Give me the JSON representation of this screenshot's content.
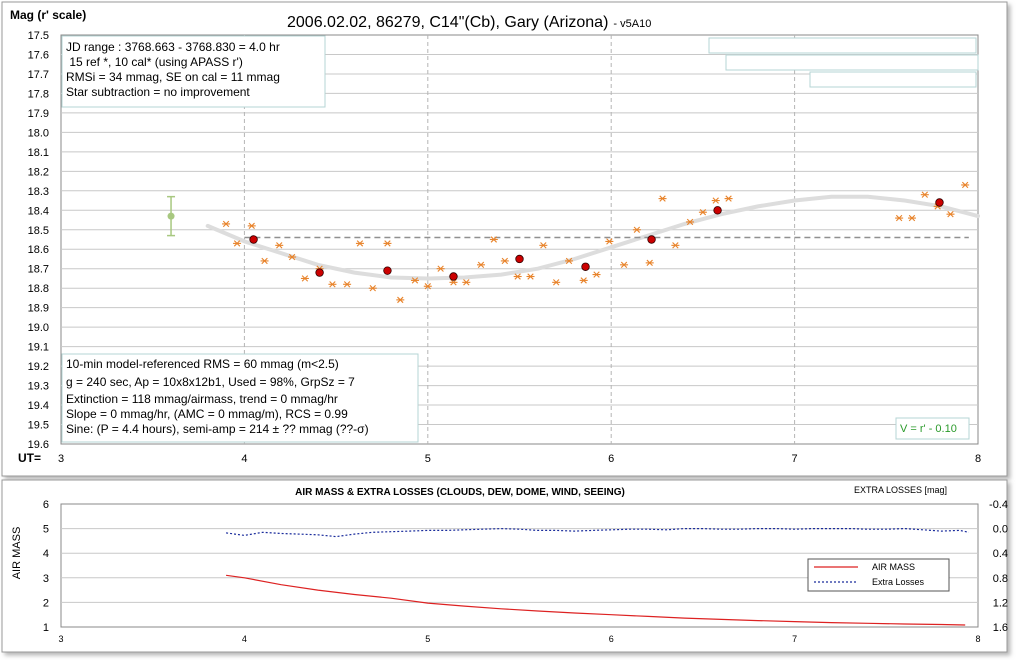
{
  "chart_data": [
    {
      "type": "scatter",
      "title": "2006.02.02, 86279, C14\"(Cb), Gary (Arizona)",
      "title_suffix": "- v5A10",
      "ylabel": "Mag (r' scale)",
      "xlabel_prefix": "UT=",
      "xlim": [
        3,
        8
      ],
      "ylim": [
        17.5,
        19.6
      ],
      "y_inverted": true,
      "grid": true,
      "xticks": [
        "3",
        "4",
        "5",
        "6",
        "7",
        "8"
      ],
      "yticks": [
        "17.5",
        "17.6",
        "17.7",
        "17.8",
        "17.9",
        "18.0",
        "18.1",
        "18.2",
        "18.3",
        "18.4",
        "18.5",
        "18.6",
        "18.7",
        "18.8",
        "18.9",
        "19.0",
        "19.1",
        "19.2",
        "19.3",
        "19.4",
        "19.5",
        "19.6"
      ],
      "info_top": [
        "JD range : 3768.663 - 3768.830 = 4.0 hr",
        " 15 ref *, 10 cal* (using APASS r')",
        "RMSi = 34 mmag, SE on cal = 11 mmag",
        "Star subtraction = no improvement"
      ],
      "info_bottom": [
        "10-min model-referenced RMS = 60 mmag (m<2.5)",
        "g = 240 sec, Ap = 10x8x12b1, Used = 98%,  GrpSz = 7",
        "Extinction = 118 mmag/airmass, trend = 0 mmag/hr",
        "Slope = 0 mmag/hr, (AMC = 0 mmag/m), RCS = 0.99",
        "Sine: (P = 4.4 hours), semi-amp = 214 ± ?? mmag (??-σ)"
      ],
      "v_label": "V = r' - 0.10",
      "mean_level": 18.54,
      "error_bar": {
        "x": 3.6,
        "y": 18.43,
        "low": 18.33,
        "high": 18.53
      },
      "series": [
        {
          "type": "scatter",
          "marker": "asterisk",
          "color": "#e8832a",
          "points": [
            [
              3.9,
              18.47
            ],
            [
              3.96,
              18.57
            ],
            [
              4.04,
              18.48
            ],
            [
              4.11,
              18.66
            ],
            [
              4.19,
              18.58
            ],
            [
              4.26,
              18.64
            ],
            [
              4.33,
              18.75
            ],
            [
              4.41,
              18.7
            ],
            [
              4.48,
              18.78
            ],
            [
              4.56,
              18.78
            ],
            [
              4.63,
              18.57
            ],
            [
              4.7,
              18.8
            ],
            [
              4.78,
              18.57
            ],
            [
              4.85,
              18.86
            ],
            [
              4.93,
              18.76
            ],
            [
              5.0,
              18.79
            ],
            [
              5.07,
              18.7
            ],
            [
              5.14,
              18.77
            ],
            [
              5.21,
              18.77
            ],
            [
              5.29,
              18.68
            ],
            [
              5.36,
              18.55
            ],
            [
              5.42,
              18.66
            ],
            [
              5.49,
              18.74
            ],
            [
              5.56,
              18.74
            ],
            [
              5.63,
              18.58
            ],
            [
              5.7,
              18.77
            ],
            [
              5.77,
              18.66
            ],
            [
              5.85,
              18.76
            ],
            [
              5.92,
              18.73
            ],
            [
              5.99,
              18.56
            ],
            [
              6.07,
              18.68
            ],
            [
              6.14,
              18.5
            ],
            [
              6.21,
              18.67
            ],
            [
              6.28,
              18.34
            ],
            [
              6.35,
              18.58
            ],
            [
              6.43,
              18.46
            ],
            [
              6.5,
              18.41
            ],
            [
              6.57,
              18.35
            ],
            [
              6.64,
              18.34
            ],
            [
              7.57,
              18.44
            ],
            [
              7.64,
              18.44
            ],
            [
              7.71,
              18.32
            ],
            [
              7.78,
              18.38
            ],
            [
              7.85,
              18.42
            ],
            [
              7.93,
              18.27
            ]
          ]
        },
        {
          "type": "scatter",
          "marker": "dot",
          "color": "#cc0000",
          "points": [
            [
              4.05,
              18.55
            ],
            [
              4.41,
              18.72
            ],
            [
              4.78,
              18.71
            ],
            [
              5.14,
              18.74
            ],
            [
              5.5,
              18.65
            ],
            [
              5.86,
              18.69
            ],
            [
              6.22,
              18.55
            ],
            [
              6.58,
              18.4
            ],
            [
              7.79,
              18.36
            ]
          ]
        },
        {
          "type": "line",
          "color": "#dddddd",
          "points": [
            [
              3.8,
              18.48
            ],
            [
              4.0,
              18.56
            ],
            [
              4.2,
              18.62
            ],
            [
              4.4,
              18.68
            ],
            [
              4.6,
              18.72
            ],
            [
              4.8,
              18.745
            ],
            [
              5.0,
              18.75
            ],
            [
              5.2,
              18.745
            ],
            [
              5.4,
              18.73
            ],
            [
              5.6,
              18.7
            ],
            [
              5.8,
              18.65
            ],
            [
              6.0,
              18.59
            ],
            [
              6.2,
              18.53
            ],
            [
              6.4,
              18.47
            ],
            [
              6.6,
              18.42
            ],
            [
              6.8,
              18.38
            ],
            [
              7.0,
              18.35
            ],
            [
              7.2,
              18.33
            ],
            [
              7.4,
              18.33
            ],
            [
              7.6,
              18.35
            ],
            [
              7.8,
              18.38
            ],
            [
              8.0,
              18.43
            ]
          ]
        }
      ]
    },
    {
      "type": "line",
      "title": "AIR MASS & EXTRA LOSSES (CLOUDS, DEW, DOME, WIND, SEEING)",
      "ylabel": "AIR MASS",
      "y2label": "EXTRA LOSSES [mag]",
      "xlim": [
        3,
        8
      ],
      "ylim": [
        1,
        6
      ],
      "y2lim": [
        -0.4,
        1.6
      ],
      "xticks": [
        "3",
        "4",
        "5",
        "6",
        "7",
        "8"
      ],
      "yticks": [
        "1",
        "2",
        "3",
        "4",
        "5",
        "6"
      ],
      "y2ticks": [
        "-0.4",
        "0.0",
        "0.4",
        "0.8",
        "1.2",
        "1.6"
      ],
      "legend_placement": "bottom-right",
      "series": [
        {
          "name": "AIR MASS",
          "color": "#dd2222",
          "axis": "left",
          "x": [
            3.9,
            4.0,
            4.2,
            4.4,
            4.6,
            4.8,
            5.0,
            5.2,
            5.4,
            5.6,
            5.8,
            6.0,
            6.2,
            6.4,
            6.6,
            6.8,
            7.0,
            7.2,
            7.4,
            7.6,
            7.8,
            7.93
          ],
          "values": [
            3.1,
            3.0,
            2.72,
            2.5,
            2.32,
            2.17,
            1.97,
            1.85,
            1.74,
            1.65,
            1.57,
            1.5,
            1.43,
            1.36,
            1.31,
            1.26,
            1.22,
            1.18,
            1.15,
            1.12,
            1.1,
            1.08
          ]
        },
        {
          "name": "Extra Losses",
          "color": "#1a2c9c",
          "axis": "right",
          "x": [
            3.9,
            4.0,
            4.1,
            4.2,
            4.3,
            4.4,
            4.5,
            4.6,
            4.7,
            4.8,
            4.9,
            5.0,
            5.1,
            5.2,
            5.3,
            5.4,
            5.5,
            5.6,
            5.7,
            5.8,
            5.9,
            6.0,
            6.1,
            6.2,
            6.3,
            6.4,
            6.5,
            6.6,
            6.7,
            6.8,
            6.9,
            7.0,
            7.1,
            7.2,
            7.3,
            7.4,
            7.5,
            7.6,
            7.7,
            7.8,
            7.9,
            7.95
          ],
          "values": [
            0.07,
            0.11,
            0.06,
            0.08,
            0.09,
            0.1,
            0.13,
            0.09,
            0.06,
            0.05,
            0.04,
            0.03,
            0.03,
            0.02,
            0.01,
            0.0,
            0.01,
            0.03,
            0.03,
            0.04,
            0.03,
            0.02,
            0.01,
            0.01,
            0.02,
            0.0,
            0.0,
            0.01,
            0.01,
            0.0,
            0.0,
            0.01,
            0.0,
            0.0,
            0.0,
            0.01,
            0.01,
            0.0,
            0.02,
            0.04,
            0.03,
            0.06
          ]
        }
      ]
    }
  ]
}
